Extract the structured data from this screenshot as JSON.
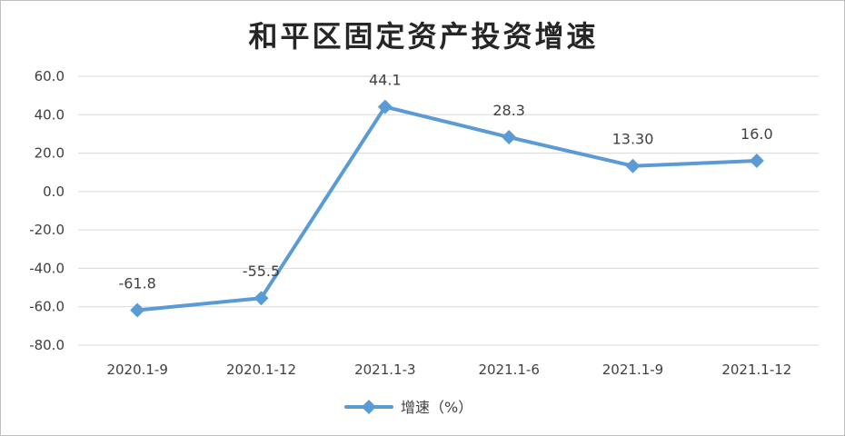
{
  "chart_data": {
    "type": "line",
    "title": "和平区固定资产投资增速",
    "xlabel": "",
    "ylabel": "",
    "categories": [
      "2020.1-9",
      "2020.1-12",
      "2021.1-3",
      "2021.1-6",
      "2021.1-9",
      "2021.1-12"
    ],
    "series": [
      {
        "name": "增速（%）",
        "values": [
          -61.8,
          -55.5,
          44.1,
          28.3,
          13.3,
          16.0
        ],
        "data_labels": [
          "-61.8",
          "-55.5",
          "44.1",
          "28.3",
          "13.30",
          "16.0"
        ],
        "color": "#5B9BD5",
        "marker": "diamond"
      }
    ],
    "ylim": [
      -80,
      60
    ],
    "yticks": [
      60,
      40,
      20,
      0,
      -20,
      -40,
      -60,
      -80
    ],
    "ytick_labels": [
      "60.0",
      "40.0",
      "20.0",
      "0.0",
      "-20.0",
      "-40.0",
      "-60.0",
      "-80.0"
    ],
    "grid": true,
    "grid_color": "#D9D9D9",
    "legend": "bottom-center"
  }
}
